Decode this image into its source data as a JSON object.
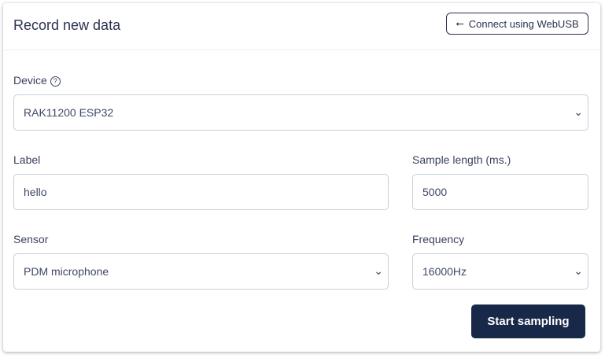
{
  "header": {
    "title": "Record new data",
    "webusb_label": "Connect using WebUSB"
  },
  "device": {
    "label": "Device",
    "value": "RAK11200 ESP32"
  },
  "label": {
    "label": "Label",
    "value": "hello"
  },
  "sample_length": {
    "label": "Sample length (ms.)",
    "value": "5000"
  },
  "sensor": {
    "label": "Sensor",
    "value": "PDM microphone"
  },
  "frequency": {
    "label": "Frequency",
    "value": "16000Hz"
  },
  "start_label": "Start sampling"
}
